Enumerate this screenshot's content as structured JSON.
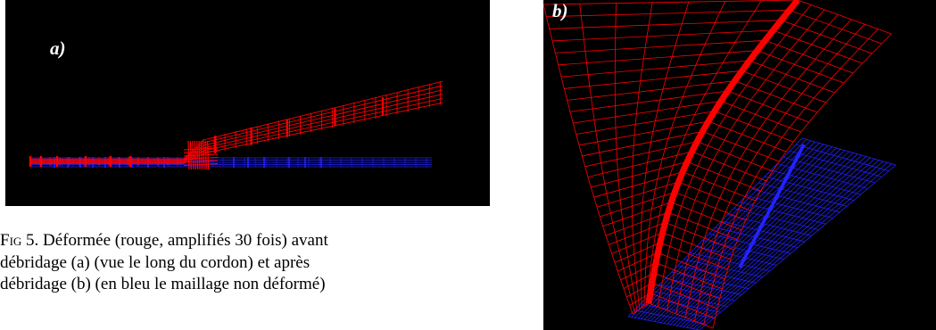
{
  "figure": {
    "panel_a": {
      "label": "a)"
    },
    "panel_b": {
      "label": "b)"
    },
    "caption": {
      "fig_prefix": "Fig",
      "line1_rest": " 5. Déformée (rouge, amplifiés 30 fois) avant",
      "line2": "débridage (a) (vue le long du cordon) et après",
      "line3": "débridage (b) (en bleu le maillage non déformé)"
    },
    "colors": {
      "background": "#000000",
      "deformed_mesh": "#ff0000",
      "undeformed_mesh": "#2222ff",
      "label": "#ffffff"
    }
  }
}
